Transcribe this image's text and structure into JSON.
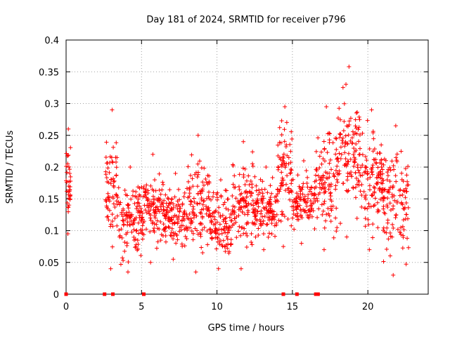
{
  "chart_data": {
    "type": "scatter",
    "title": "Day 181 of 2024, SRMTID for receiver p796",
    "xlabel": "GPS time / hours",
    "ylabel": "SRMTID / TECUs",
    "xlim": [
      0,
      24
    ],
    "ylim": [
      0,
      0.4
    ],
    "x_ticks": [
      0,
      5,
      10,
      15,
      20
    ],
    "x_tick_labels": [
      "0",
      "5",
      "10",
      "15",
      "20"
    ],
    "y_ticks": [
      0,
      0.05,
      0.1,
      0.15,
      0.2,
      0.25,
      0.3,
      0.35,
      0.4
    ],
    "y_tick_labels": [
      "0",
      "0.05",
      "0.1",
      "0.15",
      "0.2",
      "0.25",
      "0.3",
      "0.35",
      "0.4"
    ],
    "grid": true,
    "marker": "+",
    "colors": {
      "series": "#ff0000",
      "grid": "#a0a0a0",
      "axis": "#000000"
    },
    "zero_markers_x": [
      0.0,
      2.55,
      3.1,
      5.15,
      14.4,
      15.3,
      16.55,
      16.7
    ],
    "clusters": [
      {
        "x0": 0.0,
        "x1": 0.3,
        "ylo": 0.095,
        "yhi": 0.26,
        "n": 35
      },
      {
        "x0": 2.6,
        "x1": 3.5,
        "ylo": 0.04,
        "yhi": 0.29,
        "n": 70
      },
      {
        "x0": 3.5,
        "x1": 5.0,
        "ylo": 0.035,
        "yhi": 0.2,
        "n": 110
      },
      {
        "x0": 5.0,
        "x1": 6.5,
        "ylo": 0.05,
        "yhi": 0.22,
        "n": 110
      },
      {
        "x0": 6.5,
        "x1": 8.0,
        "ylo": 0.055,
        "yhi": 0.19,
        "n": 110
      },
      {
        "x0": 8.0,
        "x1": 9.5,
        "ylo": 0.035,
        "yhi": 0.25,
        "n": 110
      },
      {
        "x0": 9.5,
        "x1": 11.0,
        "ylo": 0.04,
        "yhi": 0.18,
        "n": 110
      },
      {
        "x0": 11.0,
        "x1": 12.5,
        "ylo": 0.04,
        "yhi": 0.24,
        "n": 110
      },
      {
        "x0": 12.5,
        "x1": 14.0,
        "ylo": 0.07,
        "yhi": 0.2,
        "n": 110
      },
      {
        "x0": 14.0,
        "x1": 15.0,
        "ylo": 0.075,
        "yhi": 0.295,
        "n": 80
      },
      {
        "x0": 15.0,
        "x1": 16.5,
        "ylo": 0.08,
        "yhi": 0.21,
        "n": 100
      },
      {
        "x0": 16.5,
        "x1": 18.0,
        "ylo": 0.07,
        "yhi": 0.295,
        "n": 110
      },
      {
        "x0": 18.0,
        "x1": 19.5,
        "ylo": 0.09,
        "yhi": 0.358,
        "n": 110
      },
      {
        "x0": 19.5,
        "x1": 21.0,
        "ylo": 0.07,
        "yhi": 0.29,
        "n": 110
      },
      {
        "x0": 21.0,
        "x1": 22.7,
        "ylo": 0.03,
        "yhi": 0.265,
        "n": 120
      }
    ]
  }
}
